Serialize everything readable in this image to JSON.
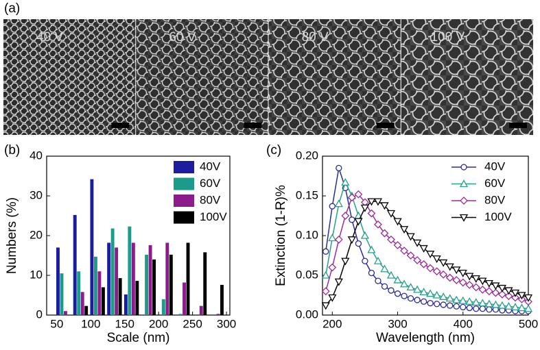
{
  "panel_a": {
    "label": "(a)",
    "images": [
      {
        "label": "40 V"
      },
      {
        "label": "60 V"
      },
      {
        "label": "80 V"
      },
      {
        "label": "100 V"
      }
    ]
  },
  "chart_data": [
    {
      "type": "bar",
      "panel_label": "(b)",
      "x_label": "Scale (nm)",
      "y_label": "Numbers (%)",
      "x": [
        60,
        85,
        110,
        135,
        160,
        185,
        210,
        235,
        260,
        285
      ],
      "xlim": [
        35,
        305
      ],
      "xticks": [
        50,
        100,
        150,
        200,
        250,
        300
      ],
      "ylim": [
        0,
        40
      ],
      "yticks": [
        0,
        10,
        20,
        30,
        40
      ],
      "legend": "upper right",
      "series": [
        {
          "name": "40V",
          "color": "#1c1c9e",
          "values": [
            17,
            25.2,
            34.2,
            18.2,
            5.2,
            0,
            0,
            0,
            0,
            0
          ]
        },
        {
          "name": "60V",
          "color": "#1e9a8a",
          "values": [
            10.5,
            11,
            14.7,
            21.8,
            22.3,
            15.2,
            4,
            0.3,
            0,
            0
          ]
        },
        {
          "name": "80V",
          "color": "#8c1c8c",
          "values": [
            1,
            5.8,
            11,
            17,
            18.2,
            17.6,
            18.2,
            8.2,
            2.3,
            0.3
          ]
        },
        {
          "name": "100V",
          "color": "#000000",
          "values": [
            0,
            2.3,
            7,
            9.3,
            8.6,
            14,
            15.2,
            18.2,
            15.8,
            7.6
          ]
        }
      ]
    },
    {
      "type": "line",
      "panel_label": "(c)",
      "x_label": "Wavelength (nm)",
      "y_label": "Extinction (1-R)%",
      "x": [
        190,
        200,
        210,
        220,
        230,
        240,
        250,
        260,
        270,
        280,
        290,
        300,
        310,
        320,
        330,
        340,
        350,
        360,
        370,
        380,
        390,
        400,
        410,
        420,
        430,
        440,
        450,
        460,
        470,
        480,
        490,
        500
      ],
      "xlim": [
        185,
        500
      ],
      "xticks": [
        200,
        300,
        400,
        500
      ],
      "ylim": [
        0,
        0.2
      ],
      "yticks": [
        {
          "value": 0,
          "label": "0.00"
        },
        {
          "value": 0.05,
          "label": "0.05"
        },
        {
          "value": 0.1,
          "label": "0.10"
        },
        {
          "value": 0.15,
          "label": "0.15"
        },
        {
          "value": 0.2,
          "label": "0.20"
        }
      ],
      "legend": "upper right",
      "series": [
        {
          "name": "40V",
          "color": "#2a2a9a",
          "marker": "circle",
          "values": [
            0.08,
            0.137,
            0.185,
            0.16,
            0.12,
            0.09,
            0.068,
            0.053,
            0.043,
            0.036,
            0.031,
            0.027,
            0.024,
            0.021,
            0.019,
            0.017,
            0.015,
            0.014,
            0.013,
            0.012,
            0.011,
            0.01,
            0.009,
            0.008,
            0.008,
            0.007,
            0.007,
            0.006,
            0.006,
            0.005,
            0.005,
            0.005
          ]
        },
        {
          "name": "60V",
          "color": "#26a08c",
          "marker": "triangle-up",
          "values": [
            0.05,
            0.097,
            0.14,
            0.167,
            0.15,
            0.125,
            0.1,
            0.082,
            0.068,
            0.058,
            0.05,
            0.044,
            0.039,
            0.035,
            0.032,
            0.029,
            0.027,
            0.025,
            0.023,
            0.021,
            0.019,
            0.018,
            0.017,
            0.016,
            0.015,
            0.014,
            0.013,
            0.012,
            0.011,
            0.01,
            0.009,
            0.008
          ]
        },
        {
          "name": "80V",
          "color": "#9b2a9b",
          "marker": "diamond",
          "values": [
            0.03,
            0.06,
            0.095,
            0.125,
            0.148,
            0.152,
            0.142,
            0.128,
            0.114,
            0.103,
            0.095,
            0.088,
            0.081,
            0.075,
            0.069,
            0.064,
            0.059,
            0.055,
            0.051,
            0.047,
            0.044,
            0.041,
            0.038,
            0.035,
            0.032,
            0.03,
            0.028,
            0.026,
            0.024,
            0.022,
            0.02,
            0.017
          ]
        },
        {
          "name": "100V",
          "color": "#000000",
          "marker": "triangle-down",
          "values": [
            0.012,
            0.022,
            0.042,
            0.068,
            0.095,
            0.118,
            0.135,
            0.143,
            0.143,
            0.138,
            0.128,
            0.118,
            0.108,
            0.099,
            0.091,
            0.084,
            0.077,
            0.071,
            0.066,
            0.061,
            0.057,
            0.053,
            0.049,
            0.046,
            0.043,
            0.04,
            0.037,
            0.034,
            0.031,
            0.028,
            0.025,
            0.022
          ]
        }
      ]
    }
  ]
}
